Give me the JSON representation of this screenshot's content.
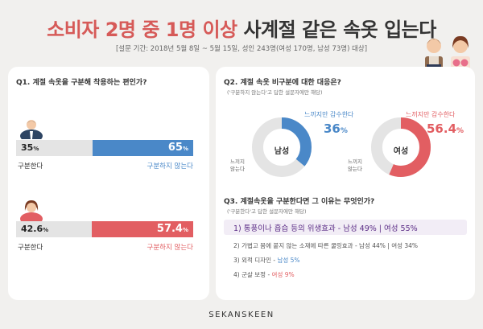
{
  "colors": {
    "accent_red": "#e25e62",
    "accent_blue": "#4a88c8",
    "title_red": "#d65a58",
    "purple": "#5b2c86"
  },
  "header": {
    "title_part1": "소비자 2명 중 1명 이상",
    "title_part2": "사계절 같은 속옷 입는다",
    "subtitle": "[설문 기간: 2018년 5월 8일 ~ 5월 15일, 성인 243명(여성 170명, 남성 73명) 대상]"
  },
  "q1": {
    "question": "Q1. 계절 속옷을 구분해 착용하는 편인가?",
    "male": {
      "a_value": "35",
      "b_value": "65",
      "pct_sign": "%",
      "a_label": "구분한다",
      "b_label": "구분하지 않는다"
    },
    "female": {
      "a_value": "42.6",
      "b_value": "57.4",
      "pct_sign": "%",
      "a_label": "구분한다",
      "b_label": "구분하지 않는다"
    }
  },
  "q2": {
    "question": "Q2. 계절 속옷 비구분에 대한 대응은?",
    "note": "('구분하지 않는다'고 답한 설문자에만 해당)",
    "male": {
      "center": "남성",
      "label": "느끼지만 감수한다",
      "value": "36",
      "pct_sign": "%",
      "other_line1": "느끼지",
      "other_line2": "않는다"
    },
    "female": {
      "center": "여성",
      "label": "느끼지만 감수한다",
      "value": "56.4",
      "pct_sign": "%",
      "other_line1": "느끼지",
      "other_line2": "않는다"
    }
  },
  "q3": {
    "question": "Q3. 계절속옷을 구분한다면 그 이유는 무엇인가?",
    "note": "('구분한다'고 답한 설문자에만 해당)",
    "reasons": [
      {
        "text": "1) 통풍이나 흡습 등의 위생효과 - 남성 49% | 여성 55%"
      },
      {
        "text": "2) 가볍고 몸에 붙지 않는 소재에 따른 쿨링효과 - 남성 44% | 여성 34%"
      },
      {
        "text_main": "3) 외적 디자인 - ",
        "text_val": "남성 5%"
      },
      {
        "text_main": "4) 군살 보정 - ",
        "text_val": "여성 9%"
      }
    ]
  },
  "footer": {
    "logo": "SEKANSKEEN"
  },
  "chart_data": [
    {
      "type": "bar",
      "title": "Q1. 계절 속옷을 구분해 착용하는 편인가?",
      "categories": [
        "남성",
        "여성"
      ],
      "series": [
        {
          "name": "구분한다",
          "values": [
            35,
            42.6
          ]
        },
        {
          "name": "구분하지 않는다",
          "values": [
            65,
            57.4
          ]
        }
      ]
    },
    {
      "type": "pie",
      "title": "Q2. 계절 속옷 비구분에 대한 대응은?",
      "categories": [
        "남성",
        "여성"
      ],
      "series": [
        {
          "name": "느끼지만 감수한다",
          "values": [
            36,
            56.4
          ]
        }
      ]
    }
  ]
}
